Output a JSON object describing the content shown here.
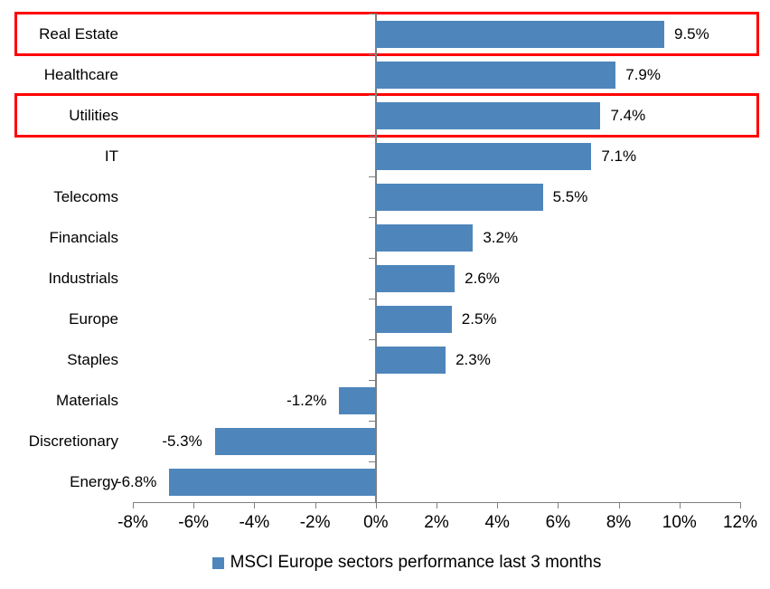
{
  "chart_data": {
    "type": "bar",
    "orientation": "horizontal",
    "title": "",
    "legend": "MSCI Europe sectors performance last 3 months",
    "legend_position": "bottom-center",
    "categories": [
      "Real Estate",
      "Healthcare",
      "Utilities",
      "IT",
      "Telecoms",
      "Financials",
      "Industrials",
      "Europe",
      "Staples",
      "Materials",
      "Discretionary",
      "Energy"
    ],
    "values": [
      9.5,
      7.9,
      7.4,
      7.1,
      5.5,
      3.2,
      2.6,
      2.5,
      2.3,
      -1.2,
      -5.3,
      -6.8
    ],
    "value_labels": [
      "9.5%",
      "7.9%",
      "7.4%",
      "7.1%",
      "5.5%",
      "3.2%",
      "2.6%",
      "2.5%",
      "2.3%",
      "-1.2%",
      "-5.3%",
      "-6.8%"
    ],
    "highlighted_categories": [
      "Real Estate",
      "Utilities"
    ],
    "x_tick_labels": [
      "-8%",
      "-6%",
      "-4%",
      "-2%",
      "0%",
      "2%",
      "4%",
      "6%",
      "8%",
      "10%",
      "12%"
    ],
    "x_tick_values": [
      -8,
      -6,
      -4,
      -2,
      0,
      2,
      4,
      6,
      8,
      10,
      12
    ],
    "xlim": [
      -8,
      12
    ],
    "grid": "off",
    "colors": {
      "bar": "#4E86BC",
      "highlight_box": "#FE0000",
      "axis": "#7F7F7F",
      "text": "#000000"
    }
  }
}
